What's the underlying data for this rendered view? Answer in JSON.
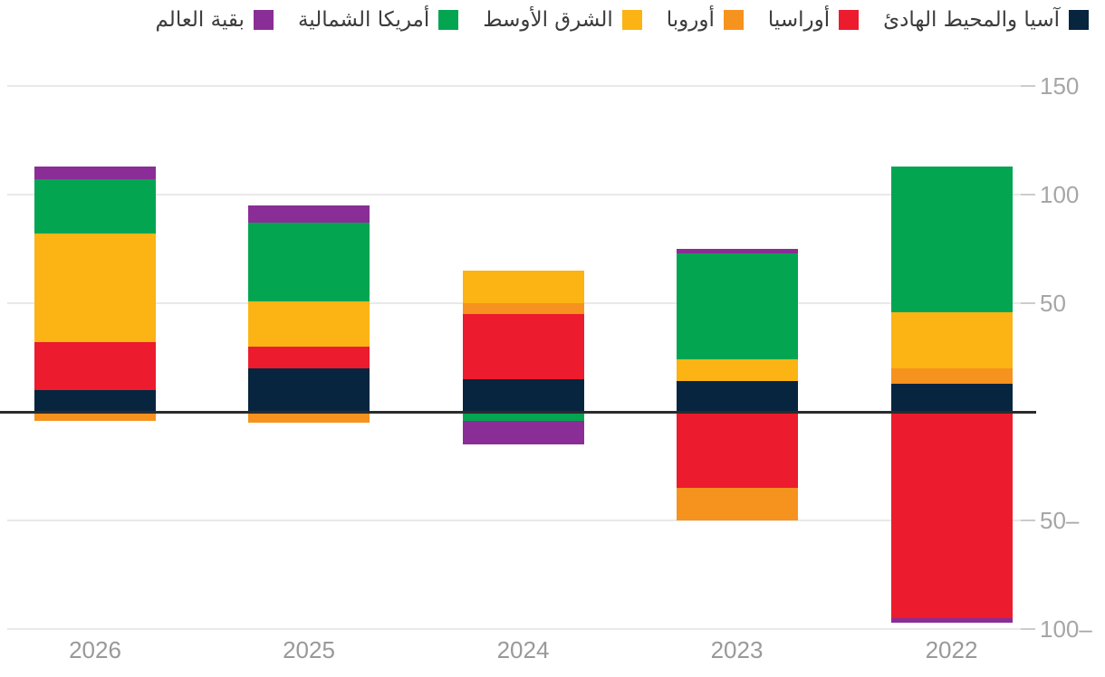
{
  "legend": {
    "items": [
      {
        "id": "asia-pacific",
        "label": "آسيا والمحيط الهادئ",
        "color": "#07253f"
      },
      {
        "id": "eurasia",
        "label": "أوراسيا",
        "color": "#ec1b2e"
      },
      {
        "id": "europe",
        "label": "أوروبا",
        "color": "#f6921e"
      },
      {
        "id": "middle-east",
        "label": "الشرق الأوسط",
        "color": "#fbb414"
      },
      {
        "id": "north-america",
        "label": "أمريكا الشمالية",
        "color": "#03a551"
      },
      {
        "id": "rest-of-world",
        "label": "بقية العالم",
        "color": "#8a2d96"
      }
    ]
  },
  "chart_data": {
    "type": "bar",
    "stacked": true,
    "direction": "rtl",
    "title": "",
    "xlabel": "",
    "ylabel": "",
    "categories": [
      "2026",
      "2025",
      "2024",
      "2023",
      "2022"
    ],
    "series": [
      {
        "id": "asia-pacific",
        "name": "آسيا والمحيط الهادئ",
        "color": "#07253f",
        "values": [
          10,
          20,
          15,
          14,
          13
        ]
      },
      {
        "id": "eurasia",
        "name": "أوراسيا",
        "color": "#ec1b2e",
        "values": [
          22,
          10,
          30,
          -35,
          -95
        ]
      },
      {
        "id": "europe",
        "name": "أوروبا",
        "color": "#f6921e",
        "values": [
          -4,
          -5,
          5,
          -15,
          7
        ]
      },
      {
        "id": "middle-east",
        "name": "الشرق الأوسط",
        "color": "#fbb414",
        "values": [
          50,
          21,
          15,
          10,
          26
        ]
      },
      {
        "id": "north-america",
        "name": "أمريكا الشمالية",
        "color": "#03a551",
        "values": [
          25,
          36,
          -4,
          49,
          67
        ]
      },
      {
        "id": "rest-of-world",
        "name": "بقية العالم",
        "color": "#8a2d96",
        "values": [
          6,
          8,
          -11,
          2,
          -2
        ]
      }
    ],
    "ylim": [
      -100,
      150
    ],
    "yticks": [
      {
        "value": 150,
        "label": "150"
      },
      {
        "value": 100,
        "label": "100"
      },
      {
        "value": 50,
        "label": "50"
      },
      {
        "value": 0,
        "label": ""
      },
      {
        "value": -50,
        "label": "50–"
      },
      {
        "value": -100,
        "label": "100–"
      }
    ],
    "grid": true,
    "legend_position": "top-right",
    "colors": {
      "zero_line": "#2b2b2b",
      "gridline": "#e9e9e9",
      "tick": "#cccccc",
      "axis_label": "#a6a6a6",
      "category_label": "#999999"
    }
  }
}
